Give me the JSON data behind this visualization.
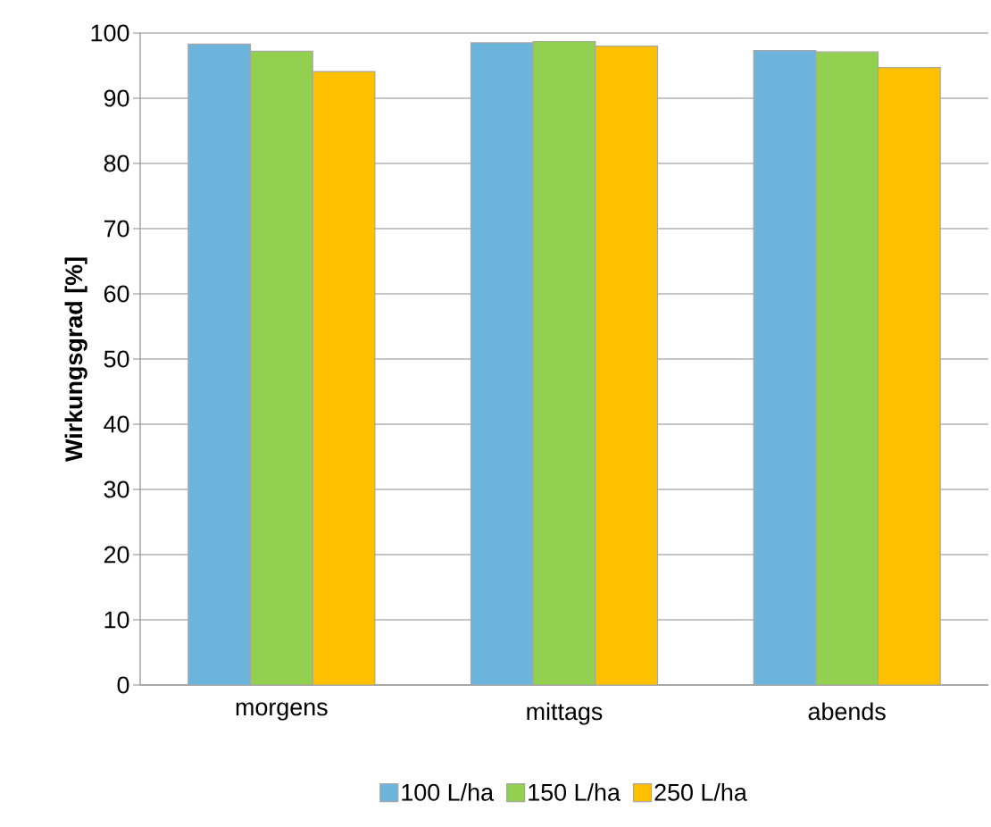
{
  "chart_data": {
    "type": "bar",
    "ylabel": "Wirkungsgrad [%]",
    "categories": [
      "morgens",
      "mittags",
      "abends"
    ],
    "series": [
      {
        "name": "100 L/ha",
        "color": "#6cb4dc",
        "values": [
          98.3,
          98.5,
          97.3
        ]
      },
      {
        "name": "150 L/ha",
        "color": "#92d050",
        "values": [
          97.2,
          98.7,
          97.1
        ]
      },
      {
        "name": "250 L/ha",
        "color": "#ffc000",
        "values": [
          94.1,
          98.0,
          94.7
        ]
      }
    ],
    "ylim": [
      0,
      100
    ],
    "yticks": [
      0,
      10,
      20,
      30,
      40,
      50,
      60,
      70,
      80,
      90,
      100
    ],
    "grid": "y",
    "legend": "bottom"
  }
}
